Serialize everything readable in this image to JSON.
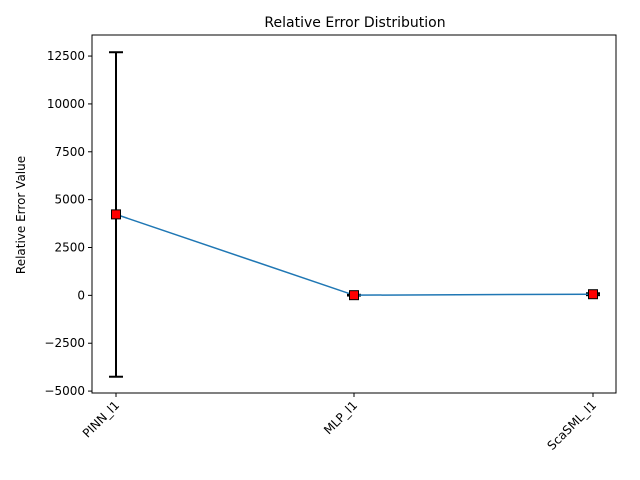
{
  "chart_data": {
    "type": "line",
    "title": "Relative Error Distribution",
    "xlabel": "",
    "ylabel": "Relative Error Value",
    "categories": [
      "PINN_l1",
      "MLP_l1",
      "ScaSML_l1"
    ],
    "series": [
      {
        "values": [
          4230,
          10,
          60
        ],
        "error_low": [
          -4250,
          -10,
          10
        ],
        "error_high": [
          12700,
          30,
          110
        ]
      }
    ],
    "ylim": [
      -5100,
      13600
    ],
    "yticks": [
      -5000,
      -2500,
      0,
      2500,
      5000,
      7500,
      10000,
      12500
    ],
    "ytick_labels": [
      "−5000",
      "−2500",
      "0",
      "2500",
      "5000",
      "7500",
      "10000",
      "12500"
    ],
    "grid": false,
    "colors": {
      "line": "#1f77b4",
      "marker_fill": "#ff0000",
      "marker_edge": "#000000",
      "errorbar": "#000000"
    }
  }
}
